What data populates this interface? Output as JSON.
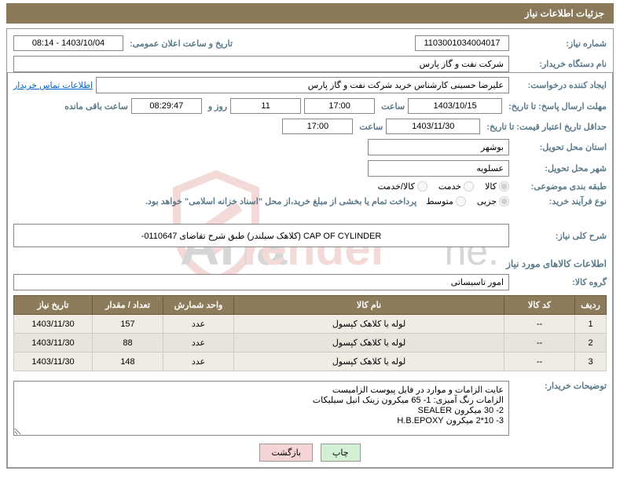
{
  "header": {
    "title": "جزئیات اطلاعات نیاز"
  },
  "fields": {
    "needNoLabel": "شماره نیاز:",
    "needNo": "1103001034004017",
    "announceLabel": "تاریخ و ساعت اعلان عمومی:",
    "announce": "1403/10/04 - 08:14",
    "buyerLabel": "نام دستگاه خریدار:",
    "buyer": "شرکت نفت و گاز پارس",
    "requesterLabel": "ایجاد کننده درخواست:",
    "requester": "علیرضا حسینی کارشناس خرید شرکت نفت و گاز پارس",
    "contactLink": "اطلاعات تماس خریدار",
    "deadlineLabel": "مهلت ارسال پاسخ:",
    "ta": "تا تاریخ:",
    "deadlineDate": "1403/10/15",
    "timeLabel": "ساعت",
    "deadlineTime": "17:00",
    "daysVal": "11",
    "daysAfter": "روز و",
    "countdown": "08:29:47",
    "countdownAfter": "ساعت باقی مانده",
    "validLabel": "حداقل تاریخ اعتبار قیمت:",
    "validDate": "1403/11/30",
    "validTime": "17:00",
    "provinceLabel": "استان محل تحویل:",
    "province": "بوشهر",
    "cityLabel": "شهر محل تحویل:",
    "city": "عسلویه",
    "categoryLabel": "طبقه بندی موضوعی:",
    "processLabel": "نوع فرآیند خرید:",
    "paymentNote": "پرداخت تمام یا بخشی از مبلغ خرید،از محل \"اسناد خزانه اسلامی\" خواهد بود."
  },
  "radios": {
    "category": {
      "opt1": "کالا",
      "opt2": "خدمت",
      "opt3": "کالا/خدمت"
    },
    "process": {
      "opt1": "جزیی",
      "opt2": "متوسط"
    }
  },
  "descTitle": "شرح کلی نیاز:",
  "desc": "CAP OF CYLINDER (کلاهک سیلندر) طبق شرح تقاضای 0110647-",
  "goodsTitle": "اطلاعات کالاهای مورد نیاز",
  "groupLabel": "گروه کالا:",
  "group": "امور تاسیساتی",
  "table": {
    "headers": {
      "row": "ردیف",
      "code": "کد کالا",
      "name": "نام کالا",
      "unit": "واحد شمارش",
      "qty": "تعداد / مقدار",
      "date": "تاریخ نیاز"
    },
    "rows": [
      {
        "r": "1",
        "code": "--",
        "name": "لوله یا کلاهک کپسول",
        "unit": "عدد",
        "qty": "157",
        "date": "1403/11/30"
      },
      {
        "r": "2",
        "code": "--",
        "name": "لوله یا کلاهک کپسول",
        "unit": "عدد",
        "qty": "88",
        "date": "1403/11/30"
      },
      {
        "r": "3",
        "code": "--",
        "name": "لوله یا کلاهک کپسول",
        "unit": "عدد",
        "qty": "148",
        "date": "1403/11/30"
      }
    ]
  },
  "notesLabel": "توضیحات خریدار:",
  "notes": "عایت الزامات و موارد در فایل پیوست الزامیست\nالزامات رنگ آمیزی: 1- 65 میکرون زینک اتیل سیلیکات\n2- 30 میکرون SEALER\n3- 10*2 میکرون H.B.EPOXY",
  "buttons": {
    "print": "چاپ",
    "back": "بازگشت"
  }
}
